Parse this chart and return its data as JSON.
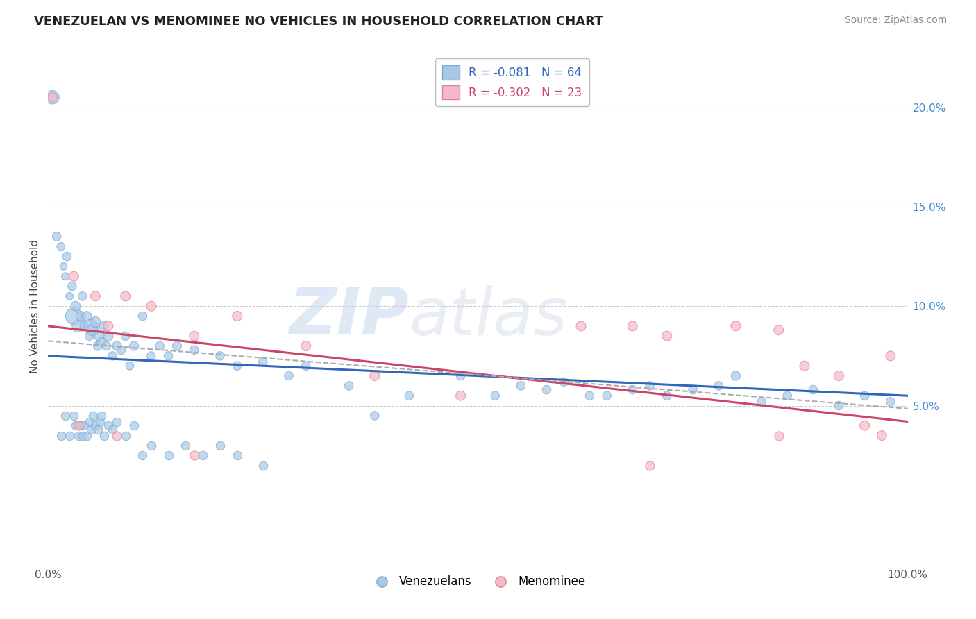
{
  "title": "VENEZUELAN VS MENOMINEE NO VEHICLES IN HOUSEHOLD CORRELATION CHART",
  "source": "Source: ZipAtlas.com",
  "ylabel": "No Vehicles in Household",
  "xlim": [
    0,
    100
  ],
  "ylim": [
    -3,
    23
  ],
  "yticks_right": [
    5,
    10,
    15,
    20
  ],
  "ytick_labels_right": [
    "5.0%",
    "10.0%",
    "15.0%",
    "20.0%"
  ],
  "legend_blue_R": "-0.081",
  "legend_blue_N": "64",
  "legend_pink_R": "-0.302",
  "legend_pink_N": "23",
  "blue_color": "#a8c8e8",
  "pink_color": "#f4b8c8",
  "blue_edge": "#7aaad0",
  "pink_edge": "#e08090",
  "trend_blue": "#3366bb",
  "trend_pink": "#cc4466",
  "trend_gray": "#aaaaaa",
  "watermark_zip": "ZIP",
  "watermark_atlas": "atlas",
  "venezuelan_x": [
    0.5,
    1.0,
    1.5,
    1.8,
    2.0,
    2.2,
    2.5,
    2.8,
    3.0,
    3.2,
    3.5,
    3.8,
    4.0,
    4.2,
    4.5,
    4.8,
    5.0,
    5.2,
    5.5,
    5.8,
    6.0,
    6.2,
    6.5,
    6.8,
    7.0,
    7.5,
    8.0,
    8.5,
    9.0,
    9.5,
    10.0,
    11.0,
    12.0,
    13.0,
    14.0,
    15.0,
    17.0,
    20.0,
    22.0,
    25.0,
    28.0,
    30.0,
    35.0,
    38.0,
    42.0,
    48.0,
    52.0,
    55.0,
    58.0,
    60.0,
    63.0,
    65.0,
    68.0,
    70.0,
    72.0,
    75.0,
    78.0,
    80.0,
    83.0,
    86.0,
    89.0,
    92.0,
    95.0,
    98.0
  ],
  "venezuelan_y": [
    20.5,
    13.5,
    13.0,
    12.0,
    11.5,
    12.5,
    10.5,
    11.0,
    9.5,
    10.0,
    9.0,
    9.5,
    10.5,
    9.0,
    9.5,
    8.5,
    9.0,
    8.8,
    9.2,
    8.0,
    8.5,
    8.2,
    9.0,
    8.0,
    8.5,
    7.5,
    8.0,
    7.8,
    8.5,
    7.0,
    8.0,
    9.5,
    7.5,
    8.0,
    7.5,
    8.0,
    7.8,
    7.5,
    7.0,
    7.2,
    6.5,
    7.0,
    6.0,
    4.5,
    5.5,
    6.5,
    5.5,
    6.0,
    5.8,
    6.2,
    5.5,
    5.5,
    5.8,
    6.0,
    5.5,
    5.8,
    6.0,
    6.5,
    5.2,
    5.5,
    5.8,
    5.0,
    5.5,
    5.2
  ],
  "venezuelan_size": [
    200,
    80,
    70,
    60,
    60,
    80,
    60,
    80,
    300,
    100,
    160,
    100,
    80,
    80,
    100,
    80,
    200,
    150,
    120,
    90,
    120,
    80,
    90,
    80,
    100,
    80,
    90,
    80,
    80,
    70,
    90,
    80,
    80,
    80,
    80,
    90,
    80,
    80,
    80,
    80,
    80,
    80,
    80,
    80,
    80,
    80,
    80,
    80,
    80,
    80,
    80,
    80,
    80,
    80,
    80,
    80,
    80,
    90,
    80,
    80,
    80,
    80,
    80,
    80
  ],
  "venezuelan_below_x": [
    1.5,
    2.0,
    2.5,
    3.0,
    3.2,
    3.5,
    3.8,
    4.0,
    4.2,
    4.5,
    4.8,
    5.0,
    5.2,
    5.5,
    5.8,
    6.0,
    6.2,
    6.5,
    7.0,
    7.5,
    8.0,
    9.0,
    10.0,
    11.0,
    12.0,
    14.0,
    16.0,
    18.0,
    20.0,
    22.0,
    25.0
  ],
  "venezuelan_below_y": [
    3.5,
    4.5,
    3.5,
    4.5,
    4.0,
    3.5,
    4.0,
    3.5,
    4.0,
    3.5,
    4.2,
    3.8,
    4.5,
    4.0,
    3.8,
    4.2,
    4.5,
    3.5,
    4.0,
    3.8,
    4.2,
    3.5,
    4.0,
    2.5,
    3.0,
    2.5,
    3.0,
    2.5,
    3.0,
    2.5,
    2.0
  ],
  "menominee_x": [
    0.5,
    3.0,
    5.5,
    7.0,
    9.0,
    12.0,
    17.0,
    22.0,
    30.0,
    38.0,
    48.0,
    62.0,
    68.0,
    72.0,
    80.0,
    85.0,
    88.0,
    92.0,
    95.0,
    97.0,
    98.0
  ],
  "menominee_y": [
    20.5,
    11.5,
    10.5,
    9.0,
    10.5,
    10.0,
    8.5,
    9.5,
    8.0,
    6.5,
    5.5,
    9.0,
    9.0,
    8.5,
    9.0,
    8.8,
    7.0,
    6.5,
    4.0,
    3.5,
    7.5
  ],
  "menominee_below_x": [
    3.5,
    8.0,
    17.0,
    70.0,
    85.0
  ],
  "menominee_below_y": [
    4.0,
    3.5,
    2.5,
    2.0,
    3.5
  ],
  "menominee_size": [
    90,
    100,
    100,
    100,
    100,
    100,
    100,
    100,
    100,
    100,
    100,
    100,
    100,
    100,
    100,
    100,
    100,
    100,
    100,
    100,
    100
  ]
}
